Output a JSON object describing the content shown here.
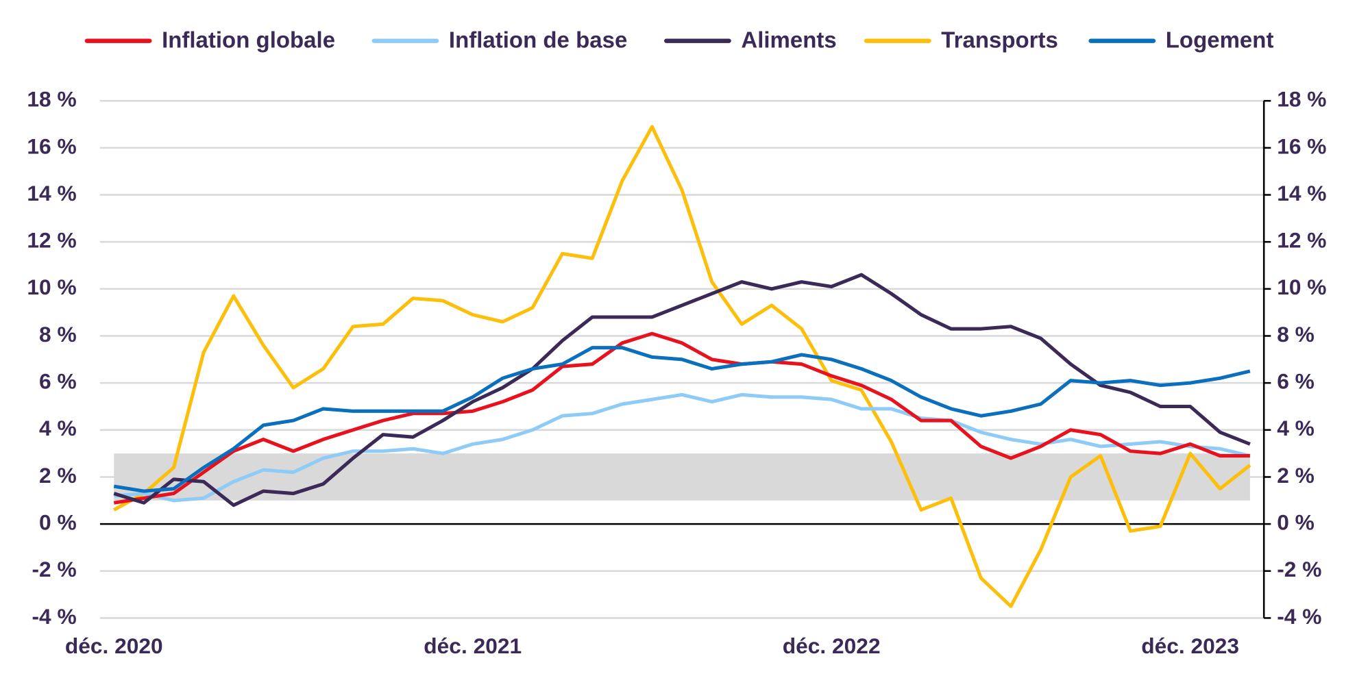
{
  "chart_data": {
    "type": "line",
    "categories": [
      "déc. 2020",
      null,
      null,
      null,
      null,
      null,
      null,
      null,
      null,
      null,
      null,
      null,
      "déc. 2021",
      null,
      null,
      null,
      null,
      null,
      null,
      null,
      null,
      null,
      null,
      null,
      "déc. 2022",
      null,
      null,
      null,
      null,
      null,
      null,
      null,
      null,
      null,
      null,
      null,
      "déc. 2023",
      null,
      null
    ],
    "series": [
      {
        "name": "Inflation globale",
        "color": "#e8121e",
        "values": [
          0.9,
          1.1,
          1.3,
          2.2,
          3.1,
          3.6,
          3.1,
          3.6,
          4.0,
          4.4,
          4.7,
          4.7,
          4.8,
          5.2,
          5.7,
          6.7,
          6.8,
          7.7,
          8.1,
          7.7,
          7.0,
          6.8,
          6.9,
          6.8,
          6.3,
          5.9,
          5.3,
          4.4,
          4.4,
          3.3,
          2.8,
          3.3,
          4.0,
          3.8,
          3.1,
          3.0,
          3.4,
          2.9,
          2.9
        ]
      },
      {
        "name": "Inflation de base",
        "color": "#8fcbf7",
        "values": [
          1.2,
          1.3,
          1.0,
          1.1,
          1.8,
          2.3,
          2.2,
          2.8,
          3.1,
          3.1,
          3.2,
          3.0,
          3.4,
          3.6,
          4.0,
          4.6,
          4.7,
          5.1,
          5.3,
          5.5,
          5.2,
          5.5,
          5.4,
          5.4,
          5.3,
          4.9,
          4.9,
          4.5,
          4.4,
          3.9,
          3.6,
          3.4,
          3.6,
          3.3,
          3.4,
          3.5,
          3.3,
          3.2,
          2.9
        ]
      },
      {
        "name": "Aliments",
        "color": "#3b2a58",
        "values": [
          1.3,
          0.9,
          1.9,
          1.8,
          0.8,
          1.4,
          1.3,
          1.7,
          2.8,
          3.8,
          3.7,
          4.4,
          5.2,
          5.8,
          6.6,
          7.8,
          8.8,
          8.8,
          8.8,
          9.3,
          9.8,
          10.3,
          10.0,
          10.3,
          10.1,
          10.6,
          9.8,
          8.9,
          8.3,
          8.3,
          8.4,
          7.9,
          6.8,
          5.9,
          5.6,
          5.0,
          5.0,
          3.9,
          3.4
        ]
      },
      {
        "name": "Transports",
        "color": "#fcbf0b",
        "values": [
          0.6,
          1.3,
          2.4,
          7.3,
          9.7,
          7.6,
          5.8,
          6.6,
          8.4,
          8.5,
          9.6,
          9.5,
          8.9,
          8.6,
          9.2,
          11.5,
          11.3,
          14.6,
          16.9,
          14.2,
          10.3,
          8.5,
          9.3,
          8.3,
          6.1,
          5.7,
          3.5,
          0.6,
          1.1,
          -2.3,
          -3.5,
          -1.1,
          2.0,
          2.9,
          -0.3,
          -0.1,
          3.0,
          1.5,
          2.5
        ]
      },
      {
        "name": "Logement",
        "color": "#0a6fbd",
        "values": [
          1.6,
          1.4,
          1.5,
          2.4,
          3.2,
          4.2,
          4.4,
          4.9,
          4.8,
          4.8,
          4.8,
          4.8,
          5.4,
          6.2,
          6.6,
          6.8,
          7.5,
          7.5,
          7.1,
          7.0,
          6.6,
          6.8,
          6.9,
          7.2,
          7.0,
          6.6,
          6.1,
          5.4,
          4.9,
          4.6,
          4.8,
          5.1,
          6.1,
          6.0,
          6.1,
          5.9,
          6.0,
          6.2,
          6.5
        ]
      }
    ],
    "shaded_band": [
      1,
      3
    ],
    "band_color": "#d9d9d9",
    "ylim": [
      -4,
      18
    ],
    "yticks": [
      {
        "value": -4,
        "label": "-4 %"
      },
      {
        "value": -2,
        "label": "-2 %"
      },
      {
        "value": 0,
        "label": "0 %"
      },
      {
        "value": 2,
        "label": "2 %"
      },
      {
        "value": 4,
        "label": "4 %"
      },
      {
        "value": 6,
        "label": "6 %"
      },
      {
        "value": 8,
        "label": "8 %"
      },
      {
        "value": 10,
        "label": "10 %"
      },
      {
        "value": 12,
        "label": "12 %"
      },
      {
        "value": 14,
        "label": "14 %"
      },
      {
        "value": 16,
        "label": "16 %"
      },
      {
        "value": 18,
        "label": "18 %"
      }
    ],
    "y2lim": [
      -4,
      18
    ],
    "y2ticks": [
      {
        "value": -4,
        "label": "-4 %"
      },
      {
        "value": -2,
        "label": "-2 %"
      },
      {
        "value": 0,
        "label": "0 %"
      },
      {
        "value": 2,
        "label": "2 %"
      },
      {
        "value": 4,
        "label": "4 %"
      },
      {
        "value": 6,
        "label": "6 %"
      },
      {
        "value": 8,
        "label": "8 %"
      },
      {
        "value": 10,
        "label": "10 %"
      },
      {
        "value": 12,
        "label": "12 %"
      },
      {
        "value": 14,
        "label": "14 %"
      },
      {
        "value": 16,
        "label": "16 %"
      },
      {
        "value": 18,
        "label": "18 %"
      }
    ],
    "grid": true,
    "legend": "top"
  }
}
